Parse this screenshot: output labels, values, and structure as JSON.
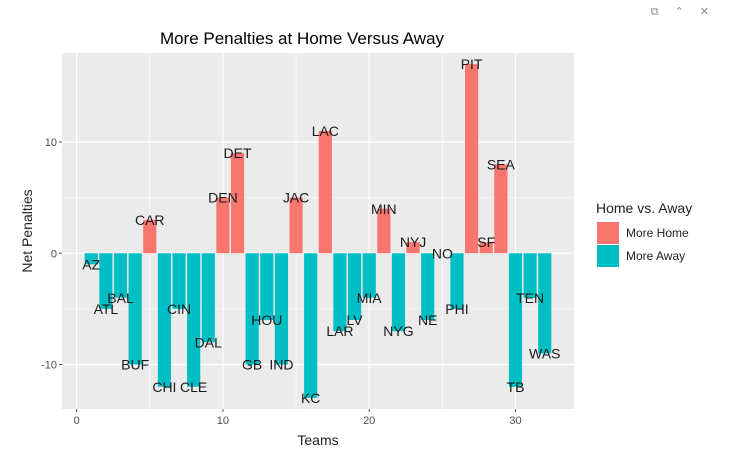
{
  "window_controls": {
    "copy_icon": "copy-icon",
    "collapse_icon": "chevron-up-icon",
    "close_icon": "close-icon"
  },
  "chart_data": {
    "type": "bar",
    "title": "More Penalties at Home Versus Away",
    "xlabel": "Teams",
    "ylabel": "Net Penalties",
    "xlim": [
      -1,
      34
    ],
    "ylim": [
      -14,
      18
    ],
    "x_ticks": [
      0,
      10,
      20,
      30
    ],
    "y_ticks": [
      -10,
      0,
      10
    ],
    "grid": true,
    "legend": {
      "position": "right",
      "title": "Home vs. Away",
      "entries": [
        {
          "name": "More Home",
          "color": "#F8766D"
        },
        {
          "name": "More Away",
          "color": "#00BFC4"
        }
      ]
    },
    "bars": [
      {
        "x": 1,
        "team": "AZ",
        "value": -1,
        "group": "More Away"
      },
      {
        "x": 2,
        "team": "ATL",
        "value": -5,
        "group": "More Away"
      },
      {
        "x": 3,
        "team": "BAL",
        "value": -4,
        "group": "More Away"
      },
      {
        "x": 4,
        "team": "BUF",
        "value": -10,
        "group": "More Away"
      },
      {
        "x": 5,
        "team": "CAR",
        "value": 3,
        "group": "More Home"
      },
      {
        "x": 6,
        "team": "CHI",
        "value": -12,
        "group": "More Away"
      },
      {
        "x": 7,
        "team": "CIN",
        "value": -5,
        "group": "More Away"
      },
      {
        "x": 8,
        "team": "CLE",
        "value": -12,
        "group": "More Away"
      },
      {
        "x": 9,
        "team": "DAL",
        "value": -8,
        "group": "More Away"
      },
      {
        "x": 10,
        "team": "DEN",
        "value": 5,
        "group": "More Home"
      },
      {
        "x": 11,
        "team": "DET",
        "value": 9,
        "group": "More Home"
      },
      {
        "x": 12,
        "team": "GB",
        "value": -10,
        "group": "More Away"
      },
      {
        "x": 13,
        "team": "HOU",
        "value": -6,
        "group": "More Away"
      },
      {
        "x": 14,
        "team": "IND",
        "value": -10,
        "group": "More Away"
      },
      {
        "x": 15,
        "team": "JAC",
        "value": 5,
        "group": "More Home"
      },
      {
        "x": 16,
        "team": "KC",
        "value": -13,
        "group": "More Away"
      },
      {
        "x": 17,
        "team": "LAC",
        "value": 11,
        "group": "More Home"
      },
      {
        "x": 18,
        "team": "LAR",
        "value": -7,
        "group": "More Away"
      },
      {
        "x": 19,
        "team": "LV",
        "value": -6,
        "group": "More Away"
      },
      {
        "x": 20,
        "team": "MIA",
        "value": -4,
        "group": "More Away"
      },
      {
        "x": 21,
        "team": "MIN",
        "value": 4,
        "group": "More Home"
      },
      {
        "x": 22,
        "team": "NYG",
        "value": -7,
        "group": "More Away"
      },
      {
        "x": 23,
        "team": "NYJ",
        "value": 1,
        "group": "More Home"
      },
      {
        "x": 24,
        "team": "NE",
        "value": -6,
        "group": "More Away"
      },
      {
        "x": 25,
        "team": "NO",
        "value": 0,
        "group": "More Home"
      },
      {
        "x": 26,
        "team": "PHI",
        "value": -5,
        "group": "More Away"
      },
      {
        "x": 27,
        "team": "PIT",
        "value": 17,
        "group": "More Home"
      },
      {
        "x": 28,
        "team": "SF",
        "value": 1,
        "group": "More Home"
      },
      {
        "x": 29,
        "team": "SEA",
        "value": 8,
        "group": "More Home"
      },
      {
        "x": 30,
        "team": "TB",
        "value": -12,
        "group": "More Away"
      },
      {
        "x": 31,
        "team": "TEN",
        "value": -4,
        "group": "More Away"
      },
      {
        "x": 32,
        "team": "WAS",
        "value": -9,
        "group": "More Away"
      }
    ]
  }
}
